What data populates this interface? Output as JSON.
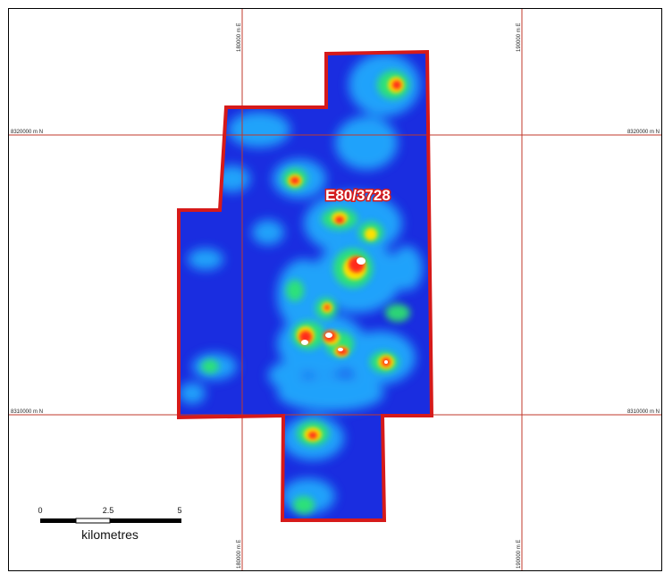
{
  "map": {
    "tenement_id": "E80/3728",
    "colors": {
      "grid": "#c0392b",
      "boundary": "#d61a1a",
      "background_anomaly": "#1a2de0",
      "low": "#22b8ff",
      "mid": "#2ee86a",
      "high": "#ffe000",
      "peak": "#ff2a1a",
      "core": "#ffffff"
    },
    "grid_labels": {
      "northing_upper": "8320000 m N",
      "northing_lower": "8310000 m N",
      "easting_left": "180000 m E",
      "easting_right": "190000 m E"
    },
    "scale_bar": {
      "ticks": [
        "0",
        "2.5",
        "5"
      ],
      "unit": "kilometres"
    }
  }
}
